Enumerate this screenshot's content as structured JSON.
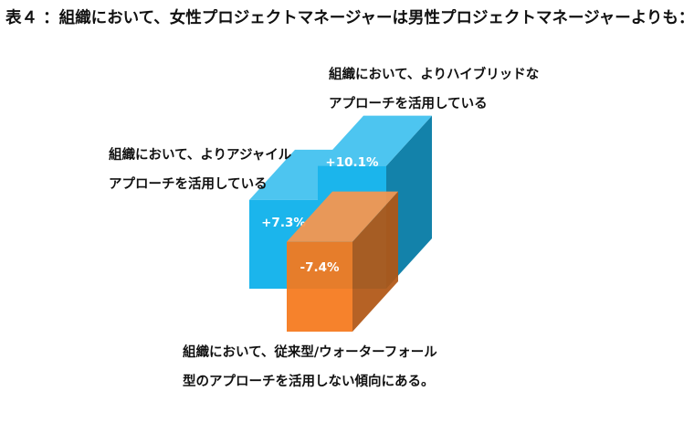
{
  "title": "表４ ：組織において、女性プロジェクトマネージャーは男性プロジェクトマネージャーよりも：",
  "chart_data": {
    "type": "bar",
    "categories": [
      "組織において、よりアジャイルアプローチを活用している",
      "組織において、よりハイブリッドなアプローチを活用している",
      "組織において、従来型/ウォーターフォール型のアプローチを活用しない傾向にある。"
    ],
    "values": [
      7.3,
      10.1,
      -7.4
    ],
    "value_labels": [
      "+7.3%",
      "+10.1%",
      "-7.4%"
    ],
    "colors": [
      "#1bb5ec",
      "#1bb5ec",
      "#f5781c"
    ],
    "style": "3d-columns"
  },
  "labels": {
    "agile": [
      "組織において、よりアジャイル",
      "アプローチを活用している"
    ],
    "hybrid": [
      "組織において、よりハイブリッドな",
      "アプローチを活用している"
    ],
    "waterfall": [
      "組織において、従来型/ウォーターフォール",
      "型のアプローチを活用しない傾向にある。"
    ]
  }
}
